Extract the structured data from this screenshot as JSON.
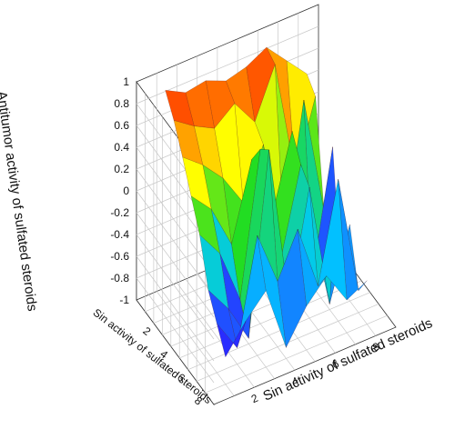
{
  "chart_data": {
    "type": "surface3d",
    "title": "",
    "zlabel": "Antitumor activity of sulfated steroids",
    "xlabel": "Sin activity of sulfated steroids",
    "ylabel": "Sin activity of sulfated steroids",
    "zlim": [
      -1,
      1
    ],
    "z_ticks": [
      "1",
      "0.8",
      "0.6",
      "0.4",
      "0.2",
      "0",
      "-0.2",
      "-0.4",
      "-0.6",
      "-0.8",
      "-1"
    ],
    "x_ticks": [
      "2",
      "4",
      "6",
      "8"
    ],
    "y_ticks": [
      "2",
      "4",
      "6",
      "8"
    ],
    "x": [
      1,
      2,
      3,
      4,
      5,
      6,
      7,
      8
    ],
    "y": [
      1,
      2,
      3,
      4,
      5,
      6,
      7,
      8
    ],
    "z": [
      [
        0.95,
        0.85,
        0.88,
        0.8,
        0.85,
        0.95,
        0.75,
        0.55
      ],
      [
        0.78,
        0.65,
        0.55,
        0.7,
        0.45,
        0.9,
        -0.2,
        0.45
      ],
      [
        0.55,
        0.4,
        0.2,
        -0.1,
        0.35,
        -0.6,
        0.6,
        -0.5
      ],
      [
        0.3,
        0.1,
        -0.3,
        0.4,
        -0.2,
        0.5,
        -0.9,
        0.2
      ],
      [
        0.05,
        -0.2,
        -0.7,
        0.6,
        -0.5,
        0.3,
        -0.7,
        -0.9
      ],
      [
        -0.35,
        -0.6,
        -0.95,
        0.7,
        -0.8,
        0.2,
        -0.95,
        -0.3
      ],
      [
        -0.55,
        -0.85,
        0.1,
        -0.4,
        0.0,
        -0.6,
        0.3,
        -0.8
      ],
      [
        -0.75,
        -0.5,
        -0.3,
        -0.9,
        -0.6,
        -0.4,
        -0.7,
        -0.6
      ]
    ],
    "colormap": [
      "#6a00b8",
      "#2a2aff",
      "#00c8ff",
      "#22dd22",
      "#ffff00",
      "#ff8800",
      "#ff0000"
    ],
    "grid": true
  }
}
